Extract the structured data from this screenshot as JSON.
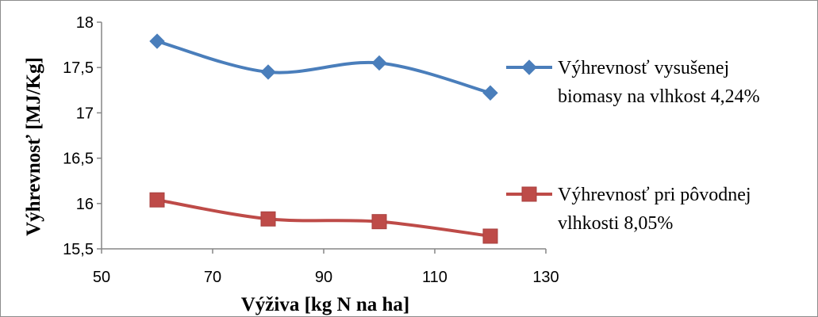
{
  "chart_data": {
    "type": "line",
    "title": "",
    "xlabel": "Výživa [kg N na ha]",
    "ylabel": "Výhrevnosť [MJ/Kg]",
    "xlim": [
      50,
      130
    ],
    "ylim": [
      15.5,
      18
    ],
    "xticks": [
      50,
      70,
      90,
      110,
      130
    ],
    "xtick_labels": [
      "50",
      "70",
      "90",
      "110",
      "130"
    ],
    "yticks": [
      15.5,
      16,
      16.5,
      17,
      17.5,
      18
    ],
    "ytick_labels": [
      "15,5",
      "16",
      "16,5",
      "17",
      "17,5",
      "18"
    ],
    "grid": false,
    "legend_position": "right",
    "smooth": true,
    "x": [
      60,
      80,
      100,
      120
    ],
    "series": [
      {
        "name_lines": [
          "Výhrevnosť vysušenej",
          "biomasy na vlhkost 4,24%"
        ],
        "values": [
          17.79,
          17.45,
          17.55,
          17.22
        ],
        "color": "#4a7ebb",
        "marker": "diamond"
      },
      {
        "name_lines": [
          "Výhrevnosť pri pôvodnej",
          "vlhkosti 8,05%"
        ],
        "values": [
          16.04,
          15.83,
          15.8,
          15.64
        ],
        "color": "#be4b48",
        "marker": "square"
      }
    ]
  }
}
